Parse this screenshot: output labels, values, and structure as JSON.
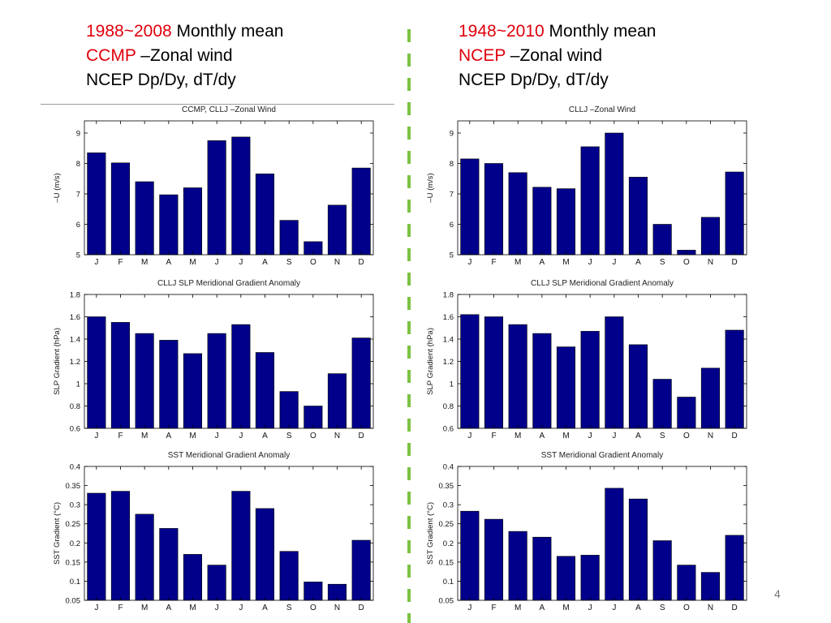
{
  "headers": {
    "left": {
      "line1_red": "1988~2008",
      "line1_rest": " Monthly mean",
      "line2_red": "CCMP",
      "line2_rest": " –Zonal wind",
      "line3": "NCEP Dp/Dy, dT/dy"
    },
    "right": {
      "line1_red": "1948~2010",
      "line1_rest": " Monthly mean",
      "line2_red": "NCEP",
      "line2_rest": " –Zonal wind",
      "line3": "NCEP Dp/Dy, dT/dy"
    }
  },
  "page_number": "4",
  "colors": {
    "bar": "#00008b",
    "header_red": "#e0000b",
    "divider": "#7cc242"
  },
  "chart_data": [
    {
      "id": "left-wind",
      "type": "bar",
      "title": "CCMP, CLLJ –Zonal Wind",
      "xlabel": "",
      "ylabel": "–U (m/s)",
      "categories": [
        "J",
        "F",
        "M",
        "A",
        "M",
        "J",
        "J",
        "A",
        "S",
        "O",
        "N",
        "D"
      ],
      "values": [
        8.35,
        8.02,
        7.4,
        6.97,
        7.2,
        8.75,
        8.87,
        7.66,
        6.13,
        5.43,
        6.63,
        7.85
      ],
      "ylim": [
        5,
        9.4
      ],
      "yticks": [
        "5",
        "6",
        "7",
        "8",
        "9"
      ],
      "ytick_values": [
        5,
        6,
        7,
        8,
        9
      ]
    },
    {
      "id": "left-slp",
      "type": "bar",
      "title": "CLLJ SLP Meridional Gradient Anomaly",
      "xlabel": "",
      "ylabel": "SLP Gradient (hPa)",
      "categories": [
        "J",
        "F",
        "M",
        "A",
        "M",
        "J",
        "J",
        "A",
        "S",
        "O",
        "N",
        "D"
      ],
      "values": [
        1.6,
        1.55,
        1.45,
        1.39,
        1.27,
        1.45,
        1.53,
        1.28,
        0.93,
        0.8,
        1.09,
        1.41
      ],
      "ylim": [
        0.6,
        1.8
      ],
      "yticks": [
        "0.6",
        "0.8",
        "1",
        "1.2",
        "1.4",
        "1.6",
        "1.8"
      ],
      "ytick_values": [
        0.6,
        0.8,
        1,
        1.2,
        1.4,
        1.6,
        1.8
      ]
    },
    {
      "id": "left-sst",
      "type": "bar",
      "title": "SST Meridional Gradient Anomaly",
      "xlabel": "",
      "ylabel": "SST Gradient (°C)",
      "categories": [
        "J",
        "F",
        "M",
        "A",
        "M",
        "J",
        "J",
        "A",
        "S",
        "O",
        "N",
        "D"
      ],
      "values": [
        0.33,
        0.335,
        0.275,
        0.238,
        0.17,
        0.142,
        0.335,
        0.29,
        0.178,
        0.098,
        0.092,
        0.207
      ],
      "ylim": [
        0.05,
        0.4
      ],
      "yticks": [
        "0.05",
        "0.1",
        "0.15",
        "0.2",
        "0.25",
        "0.3",
        "0.35",
        "0.4"
      ],
      "ytick_values": [
        0.05,
        0.1,
        0.15,
        0.2,
        0.25,
        0.3,
        0.35,
        0.4
      ]
    },
    {
      "id": "right-wind",
      "type": "bar",
      "title": "CLLJ –Zonal Wind",
      "xlabel": "",
      "ylabel": "–U (m/s)",
      "categories": [
        "J",
        "F",
        "M",
        "A",
        "M",
        "J",
        "J",
        "A",
        "S",
        "O",
        "N",
        "D"
      ],
      "values": [
        8.15,
        8.0,
        7.7,
        7.22,
        7.17,
        8.55,
        9.0,
        7.55,
        6.0,
        5.15,
        6.23,
        7.72
      ],
      "ylim": [
        5,
        9.4
      ],
      "yticks": [
        "5",
        "6",
        "7",
        "8",
        "9"
      ],
      "ytick_values": [
        5,
        6,
        7,
        8,
        9
      ]
    },
    {
      "id": "right-slp",
      "type": "bar",
      "title": "CLLJ SLP Meridional Gradient Anomaly",
      "xlabel": "",
      "ylabel": "SLP Gradient (hPa)",
      "categories": [
        "J",
        "F",
        "M",
        "A",
        "M",
        "J",
        "J",
        "A",
        "S",
        "O",
        "N",
        "D"
      ],
      "values": [
        1.62,
        1.6,
        1.53,
        1.45,
        1.33,
        1.47,
        1.6,
        1.35,
        1.04,
        0.88,
        1.14,
        1.48
      ],
      "ylim": [
        0.6,
        1.8
      ],
      "yticks": [
        "0.6",
        "0.8",
        "1",
        "1.2",
        "1.4",
        "1.6",
        "1.8"
      ],
      "ytick_values": [
        0.6,
        0.8,
        1,
        1.2,
        1.4,
        1.6,
        1.8
      ]
    },
    {
      "id": "right-sst",
      "type": "bar",
      "title": "SST Meridional Gradient Anomaly",
      "xlabel": "",
      "ylabel": "SST Gradient (°C)",
      "categories": [
        "J",
        "F",
        "M",
        "A",
        "M",
        "J",
        "J",
        "A",
        "S",
        "O",
        "N",
        "D"
      ],
      "values": [
        0.283,
        0.262,
        0.23,
        0.215,
        0.165,
        0.168,
        0.343,
        0.315,
        0.206,
        0.142,
        0.123,
        0.22
      ],
      "ylim": [
        0.05,
        0.4
      ],
      "yticks": [
        "0.05",
        "0.1",
        "0.15",
        "0.2",
        "0.25",
        "0.3",
        "0.35",
        "0.4"
      ],
      "ytick_values": [
        0.05,
        0.1,
        0.15,
        0.2,
        0.25,
        0.3,
        0.35,
        0.4
      ]
    }
  ]
}
